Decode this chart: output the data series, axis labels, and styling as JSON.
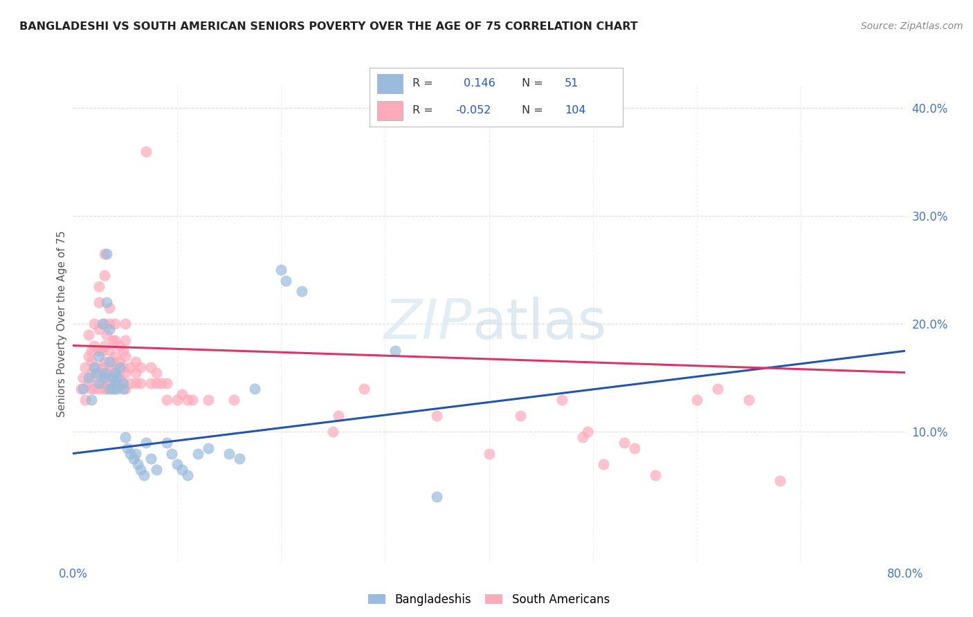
{
  "title": "BANGLADESHI VS SOUTH AMERICAN SENIORS POVERTY OVER THE AGE OF 75 CORRELATION CHART",
  "source": "Source: ZipAtlas.com",
  "ylabel": "Seniors Poverty Over the Age of 75",
  "xlim": [
    0.0,
    0.8
  ],
  "ylim": [
    -0.02,
    0.42
  ],
  "yticks_right": [
    0.1,
    0.2,
    0.3,
    0.4
  ],
  "ytick_labels_right": [
    "10.0%",
    "20.0%",
    "30.0%",
    "40.0%"
  ],
  "grid_color": "#cccccc",
  "background_color": "#ffffff",
  "blue_color": "#99bbdd",
  "pink_color": "#ffaabb",
  "blue_line_color": "#2255aa",
  "pink_line_color": "#dd3366",
  "blue_scatter": [
    [
      0.01,
      0.14
    ],
    [
      0.015,
      0.15
    ],
    [
      0.018,
      0.13
    ],
    [
      0.02,
      0.16
    ],
    [
      0.022,
      0.155
    ],
    [
      0.025,
      0.145
    ],
    [
      0.025,
      0.17
    ],
    [
      0.028,
      0.2
    ],
    [
      0.03,
      0.15
    ],
    [
      0.03,
      0.155
    ],
    [
      0.032,
      0.22
    ],
    [
      0.032,
      0.265
    ],
    [
      0.035,
      0.14
    ],
    [
      0.035,
      0.165
    ],
    [
      0.035,
      0.195
    ],
    [
      0.038,
      0.14
    ],
    [
      0.038,
      0.15
    ],
    [
      0.04,
      0.155
    ],
    [
      0.04,
      0.145
    ],
    [
      0.042,
      0.14
    ],
    [
      0.042,
      0.15
    ],
    [
      0.045,
      0.16
    ],
    [
      0.048,
      0.145
    ],
    [
      0.048,
      0.14
    ],
    [
      0.05,
      0.095
    ],
    [
      0.052,
      0.085
    ],
    [
      0.055,
      0.08
    ],
    [
      0.058,
      0.075
    ],
    [
      0.06,
      0.08
    ],
    [
      0.062,
      0.07
    ],
    [
      0.065,
      0.065
    ],
    [
      0.068,
      0.06
    ],
    [
      0.07,
      0.09
    ],
    [
      0.075,
      0.075
    ],
    [
      0.08,
      0.065
    ],
    [
      0.09,
      0.09
    ],
    [
      0.095,
      0.08
    ],
    [
      0.1,
      0.07
    ],
    [
      0.105,
      0.065
    ],
    [
      0.11,
      0.06
    ],
    [
      0.12,
      0.08
    ],
    [
      0.13,
      0.085
    ],
    [
      0.15,
      0.08
    ],
    [
      0.16,
      0.075
    ],
    [
      0.175,
      0.14
    ],
    [
      0.2,
      0.25
    ],
    [
      0.205,
      0.24
    ],
    [
      0.22,
      0.23
    ],
    [
      0.31,
      0.175
    ],
    [
      0.35,
      0.04
    ]
  ],
  "pink_scatter": [
    [
      0.008,
      0.14
    ],
    [
      0.01,
      0.15
    ],
    [
      0.012,
      0.16
    ],
    [
      0.012,
      0.13
    ],
    [
      0.015,
      0.17
    ],
    [
      0.015,
      0.145
    ],
    [
      0.015,
      0.19
    ],
    [
      0.018,
      0.14
    ],
    [
      0.018,
      0.155
    ],
    [
      0.018,
      0.165
    ],
    [
      0.018,
      0.175
    ],
    [
      0.02,
      0.18
    ],
    [
      0.02,
      0.14
    ],
    [
      0.02,
      0.2
    ],
    [
      0.022,
      0.15
    ],
    [
      0.022,
      0.16
    ],
    [
      0.025,
      0.14
    ],
    [
      0.025,
      0.155
    ],
    [
      0.025,
      0.175
    ],
    [
      0.025,
      0.195
    ],
    [
      0.025,
      0.22
    ],
    [
      0.025,
      0.235
    ],
    [
      0.028,
      0.145
    ],
    [
      0.028,
      0.16
    ],
    [
      0.028,
      0.175
    ],
    [
      0.03,
      0.14
    ],
    [
      0.03,
      0.15
    ],
    [
      0.03,
      0.165
    ],
    [
      0.03,
      0.18
    ],
    [
      0.03,
      0.2
    ],
    [
      0.03,
      0.245
    ],
    [
      0.03,
      0.265
    ],
    [
      0.032,
      0.14
    ],
    [
      0.032,
      0.155
    ],
    [
      0.032,
      0.19
    ],
    [
      0.035,
      0.145
    ],
    [
      0.035,
      0.16
    ],
    [
      0.035,
      0.175
    ],
    [
      0.035,
      0.2
    ],
    [
      0.035,
      0.215
    ],
    [
      0.038,
      0.15
    ],
    [
      0.038,
      0.165
    ],
    [
      0.038,
      0.185
    ],
    [
      0.04,
      0.14
    ],
    [
      0.04,
      0.155
    ],
    [
      0.04,
      0.17
    ],
    [
      0.04,
      0.185
    ],
    [
      0.04,
      0.2
    ],
    [
      0.042,
      0.145
    ],
    [
      0.042,
      0.16
    ],
    [
      0.045,
      0.15
    ],
    [
      0.045,
      0.165
    ],
    [
      0.045,
      0.18
    ],
    [
      0.048,
      0.145
    ],
    [
      0.048,
      0.16
    ],
    [
      0.048,
      0.175
    ],
    [
      0.05,
      0.14
    ],
    [
      0.05,
      0.155
    ],
    [
      0.05,
      0.17
    ],
    [
      0.05,
      0.185
    ],
    [
      0.05,
      0.2
    ],
    [
      0.055,
      0.145
    ],
    [
      0.055,
      0.16
    ],
    [
      0.06,
      0.145
    ],
    [
      0.06,
      0.155
    ],
    [
      0.06,
      0.165
    ],
    [
      0.065,
      0.145
    ],
    [
      0.065,
      0.16
    ],
    [
      0.07,
      0.36
    ],
    [
      0.075,
      0.145
    ],
    [
      0.075,
      0.16
    ],
    [
      0.08,
      0.145
    ],
    [
      0.08,
      0.155
    ],
    [
      0.085,
      0.145
    ],
    [
      0.09,
      0.13
    ],
    [
      0.09,
      0.145
    ],
    [
      0.1,
      0.13
    ],
    [
      0.105,
      0.135
    ],
    [
      0.11,
      0.13
    ],
    [
      0.115,
      0.13
    ],
    [
      0.13,
      0.13
    ],
    [
      0.155,
      0.13
    ],
    [
      0.25,
      0.1
    ],
    [
      0.255,
      0.115
    ],
    [
      0.28,
      0.14
    ],
    [
      0.35,
      0.115
    ],
    [
      0.4,
      0.08
    ],
    [
      0.43,
      0.115
    ],
    [
      0.47,
      0.13
    ],
    [
      0.49,
      0.095
    ],
    [
      0.495,
      0.1
    ],
    [
      0.51,
      0.07
    ],
    [
      0.53,
      0.09
    ],
    [
      0.54,
      0.085
    ],
    [
      0.56,
      0.06
    ],
    [
      0.6,
      0.13
    ],
    [
      0.62,
      0.14
    ],
    [
      0.65,
      0.13
    ],
    [
      0.68,
      0.055
    ]
  ],
  "blue_trend": [
    0.0,
    0.08,
    0.8,
    0.175
  ],
  "pink_trend": [
    0.0,
    0.18,
    0.8,
    0.155
  ]
}
